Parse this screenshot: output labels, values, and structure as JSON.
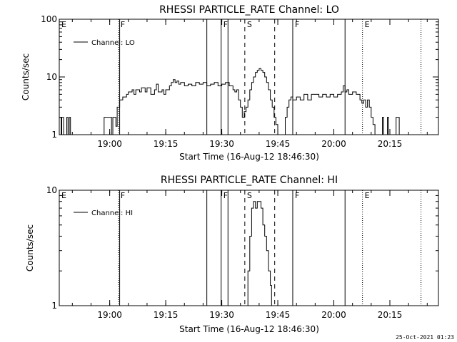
{
  "timestamp": "25-Oct-2021 01:23",
  "chart_data": [
    {
      "type": "line",
      "title": "RHESSI PARTICLE_RATE Channel: LO",
      "xlabel": "Start Time (16-Aug-12 18:46:30)",
      "ylabel": "Counts/sec",
      "yscale": "log",
      "ylim": [
        1,
        100
      ],
      "xlim": [
        "18:46:30",
        "20:28:00"
      ],
      "x_ticks": [
        "19:00",
        "19:15",
        "19:30",
        "19:45",
        "20:00",
        "20:15"
      ],
      "y_ticks": [
        "1",
        "10",
        "100"
      ],
      "grid": false,
      "legend": {
        "position": "top-left",
        "entries": [
          "Channel: LO"
        ]
      },
      "markers": [
        {
          "label": "E",
          "time": "18:46:30",
          "style": "dotted"
        },
        {
          "label": "F",
          "time": "19:02:20",
          "style": "dotted"
        },
        {
          "label": "",
          "time": "19:02:40",
          "style": "solid"
        },
        {
          "label": "",
          "time": "19:26:00",
          "style": "solid"
        },
        {
          "label": "F",
          "time": "19:29:50",
          "style": "solid"
        },
        {
          "label": "",
          "time": "19:31:40",
          "style": "solid"
        },
        {
          "label": "S",
          "time": "19:36:10",
          "style": "dashed"
        },
        {
          "label": "",
          "time": "19:44:10",
          "style": "dashed"
        },
        {
          "label": "F",
          "time": "19:49:00",
          "style": "solid"
        },
        {
          "label": "",
          "time": "20:03:00",
          "style": "solid"
        },
        {
          "label": "E",
          "time": "20:07:40",
          "style": "dotted"
        },
        {
          "label": "",
          "time": "20:23:20",
          "style": "dotted"
        }
      ],
      "series": [
        {
          "name": "Channel: LO",
          "points": [
            [
              "18:46:30",
              2
            ],
            [
              "18:47:00",
              1
            ],
            [
              "18:47:10",
              2
            ],
            [
              "18:47:40",
              1
            ],
            [
              "18:48:20",
              1
            ],
            [
              "18:48:30",
              2
            ],
            [
              "18:48:50",
              1
            ],
            [
              "18:49:10",
              2
            ],
            [
              "18:49:30",
              1
            ],
            [
              "18:58:20",
              1
            ],
            [
              "18:58:30",
              2
            ],
            [
              "19:00:20",
              2
            ],
            [
              "19:00:30",
              1
            ],
            [
              "19:00:50",
              2
            ],
            [
              "19:01:40",
              1.4
            ],
            [
              "19:02:00",
              3
            ],
            [
              "19:02:40",
              4
            ],
            [
              "19:03:30",
              4.5
            ],
            [
              "19:04:30",
              5
            ],
            [
              "19:05:00",
              5.5
            ],
            [
              "19:06:00",
              6
            ],
            [
              "19:06:30",
              5
            ],
            [
              "19:07:00",
              6
            ],
            [
              "19:08:00",
              5.5
            ],
            [
              "19:08:30",
              6.5
            ],
            [
              "19:09:30",
              5.5
            ],
            [
              "19:10:00",
              6.5
            ],
            [
              "19:11:00",
              5
            ],
            [
              "19:12:00",
              6
            ],
            [
              "19:12:30",
              7.5
            ],
            [
              "19:13:00",
              5.5
            ],
            [
              "19:14:00",
              6
            ],
            [
              "19:14:30",
              5
            ],
            [
              "19:15:00",
              6
            ],
            [
              "19:16:00",
              7
            ],
            [
              "19:16:30",
              8
            ],
            [
              "19:17:00",
              9
            ],
            [
              "19:17:30",
              8
            ],
            [
              "19:18:00",
              8.5
            ],
            [
              "19:18:30",
              7.5
            ],
            [
              "19:19:00",
              8
            ],
            [
              "19:20:00",
              7
            ],
            [
              "19:21:00",
              7.5
            ],
            [
              "19:22:00",
              7
            ],
            [
              "19:23:00",
              8
            ],
            [
              "19:24:00",
              7.5
            ],
            [
              "19:25:00",
              8
            ],
            [
              "19:26:00",
              7
            ],
            [
              "19:27:00",
              7.5
            ],
            [
              "19:28:00",
              8
            ],
            [
              "19:29:00",
              7
            ],
            [
              "19:30:00",
              7.5
            ],
            [
              "19:31:00",
              8
            ],
            [
              "19:32:00",
              7
            ],
            [
              "19:33:00",
              6
            ],
            [
              "19:33:30",
              5.5
            ],
            [
              "19:34:00",
              6
            ],
            [
              "19:34:30",
              4
            ],
            [
              "19:35:00",
              3
            ],
            [
              "19:35:30",
              2
            ],
            [
              "19:36:00",
              2.5
            ],
            [
              "19:36:30",
              3
            ],
            [
              "19:37:00",
              4
            ],
            [
              "19:37:30",
              6
            ],
            [
              "19:38:00",
              8
            ],
            [
              "19:38:30",
              10
            ],
            [
              "19:39:00",
              12
            ],
            [
              "19:39:30",
              13
            ],
            [
              "19:40:00",
              14
            ],
            [
              "19:40:30",
              13
            ],
            [
              "19:41:00",
              12
            ],
            [
              "19:41:30",
              10
            ],
            [
              "19:42:00",
              8
            ],
            [
              "19:42:30",
              6
            ],
            [
              "19:43:00",
              4
            ],
            [
              "19:43:30",
              3
            ],
            [
              "19:44:00",
              2
            ],
            [
              "19:44:30",
              1.5
            ],
            [
              "19:45:00",
              1
            ],
            [
              "19:46:30",
              1
            ],
            [
              "19:47:00",
              2
            ],
            [
              "19:47:30",
              3
            ],
            [
              "19:48:00",
              4
            ],
            [
              "19:48:30",
              4.5
            ],
            [
              "19:49:00",
              4
            ],
            [
              "19:50:00",
              4.5
            ],
            [
              "19:51:00",
              4
            ],
            [
              "19:52:00",
              5
            ],
            [
              "19:53:00",
              4
            ],
            [
              "19:54:00",
              5
            ],
            [
              "19:55:00",
              5
            ],
            [
              "19:56:00",
              4.5
            ],
            [
              "19:57:00",
              5
            ],
            [
              "19:58:00",
              4.5
            ],
            [
              "19:59:00",
              5
            ],
            [
              "20:00:00",
              4.5
            ],
            [
              "20:01:00",
              5
            ],
            [
              "20:02:00",
              5.5
            ],
            [
              "20:02:30",
              7
            ],
            [
              "20:03:00",
              5.5
            ],
            [
              "20:03:30",
              6
            ],
            [
              "20:04:00",
              5
            ],
            [
              "20:05:00",
              5.5
            ],
            [
              "20:06:00",
              5
            ],
            [
              "20:07:00",
              4
            ],
            [
              "20:07:30",
              3.5
            ],
            [
              "20:08:00",
              4
            ],
            [
              "20:08:30",
              3
            ],
            [
              "20:09:00",
              4
            ],
            [
              "20:09:30",
              3
            ],
            [
              "20:10:00",
              2
            ],
            [
              "20:10:30",
              1.5
            ],
            [
              "20:11:00",
              1
            ],
            [
              "20:12:30",
              1
            ],
            [
              "20:13:00",
              2
            ],
            [
              "20:13:20",
              1
            ],
            [
              "20:14:00",
              1
            ],
            [
              "20:14:20",
              2
            ],
            [
              "20:14:40",
              1
            ],
            [
              "20:16:30",
              1
            ],
            [
              "20:16:40",
              2
            ],
            [
              "20:17:20",
              2
            ],
            [
              "20:17:30",
              1
            ]
          ]
        }
      ]
    },
    {
      "type": "line",
      "title": "RHESSI PARTICLE_RATE Channel: HI",
      "xlabel": "Start Time (16-Aug-12 18:46:30)",
      "ylabel": "Counts/sec",
      "yscale": "log",
      "ylim": [
        1,
        10
      ],
      "xlim": [
        "18:46:30",
        "20:28:00"
      ],
      "x_ticks": [
        "19:00",
        "19:15",
        "19:30",
        "19:45",
        "20:00",
        "20:15"
      ],
      "y_ticks": [
        "1",
        "10"
      ],
      "grid": false,
      "legend": {
        "position": "top-left",
        "entries": [
          "Channel: HI"
        ]
      },
      "markers": [
        {
          "label": "E",
          "time": "18:46:30",
          "style": "dotted"
        },
        {
          "label": "F",
          "time": "19:02:20",
          "style": "dotted"
        },
        {
          "label": "",
          "time": "19:02:40",
          "style": "solid"
        },
        {
          "label": "",
          "time": "19:26:00",
          "style": "solid"
        },
        {
          "label": "F",
          "time": "19:29:50",
          "style": "solid"
        },
        {
          "label": "",
          "time": "19:31:40",
          "style": "solid"
        },
        {
          "label": "S",
          "time": "19:36:10",
          "style": "dashed"
        },
        {
          "label": "",
          "time": "19:44:10",
          "style": "dashed"
        },
        {
          "label": "F",
          "time": "19:49:00",
          "style": "solid"
        },
        {
          "label": "",
          "time": "20:03:00",
          "style": "solid"
        },
        {
          "label": "E",
          "time": "20:07:40",
          "style": "dotted"
        },
        {
          "label": "",
          "time": "20:23:20",
          "style": "dotted"
        }
      ],
      "series": [
        {
          "name": "Channel: HI",
          "points": [
            [
              "19:36:30",
              1
            ],
            [
              "19:37:00",
              2
            ],
            [
              "19:37:30",
              4
            ],
            [
              "19:38:00",
              7
            ],
            [
              "19:38:30",
              8
            ],
            [
              "19:39:00",
              7
            ],
            [
              "19:39:30",
              8
            ],
            [
              "19:40:00",
              8
            ],
            [
              "19:40:30",
              7
            ],
            [
              "19:41:00",
              5
            ],
            [
              "19:41:30",
              4
            ],
            [
              "19:42:00",
              3
            ],
            [
              "19:42:30",
              2
            ],
            [
              "19:43:00",
              1.5
            ],
            [
              "19:43:20",
              1
            ]
          ]
        }
      ]
    }
  ]
}
